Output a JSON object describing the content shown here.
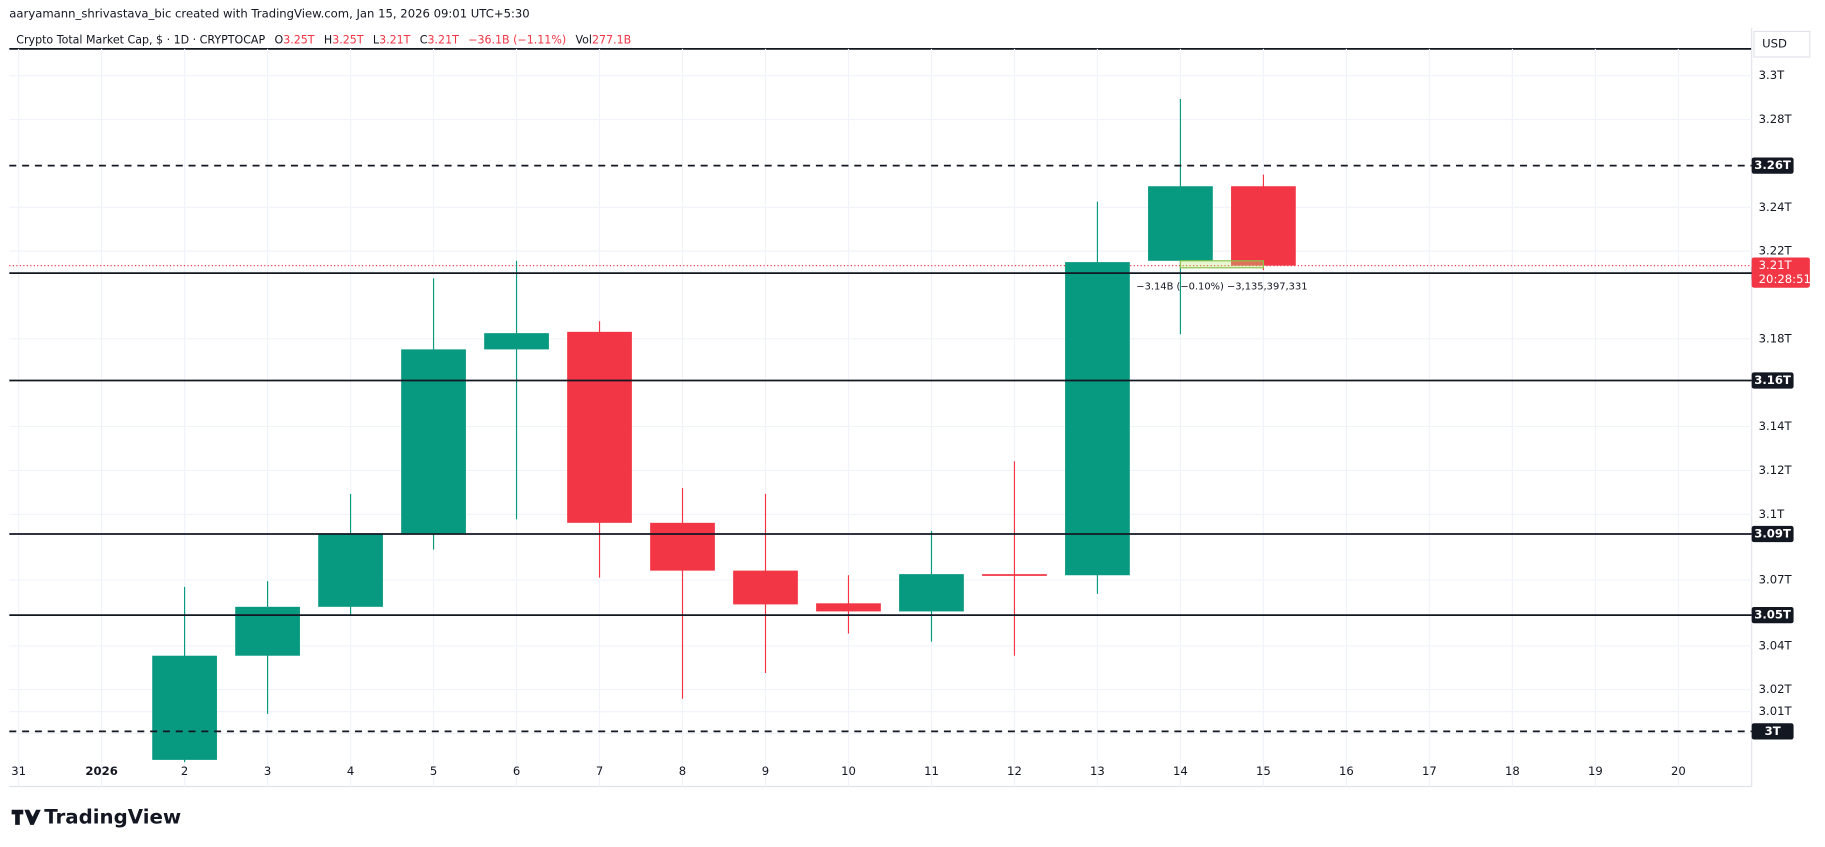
{
  "header": {
    "credit": "aaryamann_shrivastava_bic created with TradingView.com, Jan 15, 2026 09:01 UTC+5:30",
    "symbol": "Crypto Total Market Cap, $ · 1D · CRYPTOCAP",
    "o_label": "O",
    "o_value": "3.25T",
    "h_label": "H",
    "h_value": "3.25T",
    "l_label": "L",
    "l_value": "3.21T",
    "c_label": "C",
    "c_value": "3.21T",
    "change": "−36.1B (−1.11%)",
    "vol_label": "Vol",
    "vol_value": "277.1B",
    "currency": "USD",
    "logo": "TradingView"
  },
  "chart_data": {
    "type": "candlestick",
    "up_color": "#089981",
    "down_color": "#f23645",
    "categories": [
      "31",
      "2026",
      "2",
      "3",
      "4",
      "5",
      "6",
      "7",
      "8",
      "9",
      "10",
      "11",
      "12",
      "13",
      "14",
      "15",
      "16",
      "17",
      "18",
      "19",
      "20"
    ],
    "open": [
      null,
      null,
      2.988,
      3.0355,
      3.0578,
      3.0913,
      3.1752,
      3.1832,
      3.0961,
      3.0743,
      3.0594,
      3.0557,
      3.0727,
      3.0722,
      3.2156,
      3.2496,
      null,
      null,
      null,
      null,
      null
    ],
    "high": [
      null,
      null,
      3.0669,
      3.0695,
      3.1093,
      3.2076,
      3.2156,
      3.188,
      3.112,
      3.1093,
      3.0722,
      3.0924,
      3.1242,
      3.2426,
      3.2894,
      3.2549,
      null,
      null,
      null,
      null,
      null
    ],
    "low": [
      null,
      null,
      2.987,
      3.009,
      3.0541,
      3.0839,
      3.0977,
      3.0711,
      3.0159,
      3.0276,
      3.0456,
      3.0419,
      3.0355,
      3.0637,
      3.1821,
      3.2113,
      null,
      null,
      null,
      null,
      null
    ],
    "close": [
      null,
      null,
      3.0355,
      3.0578,
      3.0913,
      3.1752,
      3.1826,
      3.0961,
      3.0743,
      3.0589,
      3.0557,
      3.0727,
      3.0722,
      3.215,
      3.2496,
      3.2134,
      null,
      null,
      null,
      null,
      null
    ],
    "ylim": [
      2.987,
      3.308
    ],
    "yticks": [
      {
        "value": 3.3,
        "label": "3.3T"
      },
      {
        "value": 3.28,
        "label": "3.28T"
      },
      {
        "value": 3.24,
        "label": "3.24T"
      },
      {
        "value": 3.22,
        "label": "3.22T"
      },
      {
        "value": 3.18,
        "label": "3.18T"
      },
      {
        "value": 3.14,
        "label": "3.14T"
      },
      {
        "value": 3.12,
        "label": "3.12T"
      },
      {
        "value": 3.1,
        "label": "3.1T"
      },
      {
        "value": 3.07,
        "label": "3.07T"
      },
      {
        "value": 3.04,
        "label": "3.04T"
      },
      {
        "value": 3.02,
        "label": "3.02T"
      },
      {
        "value": 3.01,
        "label": "3.01T"
      },
      {
        "value": 3,
        "label": "3T"
      }
    ],
    "grid": true,
    "levels": [
      {
        "value": 3.259,
        "label": "3.26T",
        "style": "dashed"
      },
      {
        "value": 3.21,
        "label": "3.21T",
        "style": "solid"
      },
      {
        "value": 3.161,
        "label": "3.16T",
        "style": "solid"
      },
      {
        "value": 3.091,
        "label": "3.09T",
        "style": "solid"
      },
      {
        "value": 3.054,
        "label": "3.05T",
        "style": "solid"
      },
      {
        "value": 3.001,
        "label": "3T",
        "style": "dashed"
      }
    ],
    "last_price": {
      "value": 3.2134,
      "label": "3.21T",
      "countdown": "20:28:51"
    },
    "annotation": {
      "text": "−3.14B (−0.10%) −3,135,397,331",
      "from": 3.2156,
      "to": 3.2124
    }
  }
}
